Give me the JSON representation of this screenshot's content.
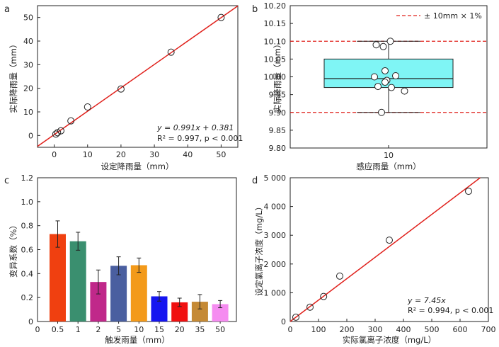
{
  "chart_data": [
    {
      "type": "scatter",
      "panel_label": "a",
      "xlabel": "设定降雨量（mm）",
      "ylabel": "实际降雨量（mm）",
      "xlim": [
        -5,
        55
      ],
      "ylim": [
        -5,
        55
      ],
      "xticks": [
        0,
        10,
        20,
        30,
        40,
        50
      ],
      "yticks": [
        0,
        10,
        20,
        30,
        40,
        50
      ],
      "x": [
        0.5,
        1,
        2,
        5,
        10,
        20,
        35,
        50
      ],
      "y": [
        0.6,
        1.2,
        2.0,
        6.2,
        12.1,
        19.7,
        35.3,
        50.0
      ],
      "fit": {
        "slope": 0.991,
        "intercept": 0.381,
        "color": "#e0201b"
      },
      "annotation_line1": "y = 0.991x + 0.381",
      "annotation_line2": "R² = 0.997, p < 0.001",
      "grid": false
    },
    {
      "type": "box",
      "panel_label": "b",
      "xlabel": "感应雨量（mm）",
      "ylabel": "实际降雨量（mm）",
      "ylim": [
        9.8,
        10.2
      ],
      "yticks": [
        "9.80",
        "9.85",
        "9.90",
        "9.95",
        "10.00",
        "10.05",
        "10.10",
        "10.15",
        "10.20"
      ],
      "category": "10",
      "box": {
        "min": 9.9,
        "q1": 9.97,
        "median": 9.995,
        "q3": 10.05,
        "max": 10.1,
        "color": "#7ff5f5"
      },
      "points": [
        {
          "jitter": -0.35,
          "y": 10.09
        },
        {
          "jitter": -0.15,
          "y": 10.085
        },
        {
          "jitter": 0.05,
          "y": 10.1
        },
        {
          "jitter": -0.1,
          "y": 10.017
        },
        {
          "jitter": -0.4,
          "y": 10.0
        },
        {
          "jitter": 0.2,
          "y": 10.003
        },
        {
          "jitter": -0.05,
          "y": 9.99
        },
        {
          "jitter": -0.1,
          "y": 9.985
        },
        {
          "jitter": -0.3,
          "y": 9.973
        },
        {
          "jitter": 0.08,
          "y": 9.97
        },
        {
          "jitter": 0.45,
          "y": 9.96
        },
        {
          "jitter": -0.2,
          "y": 9.9
        }
      ],
      "ref_lines": [
        9.9,
        10.1
      ],
      "ref_color": "#e0201b",
      "legend": "± 10mm × 1%",
      "legend_position": "top-right"
    },
    {
      "type": "bar",
      "panel_label": "c",
      "xlabel": "触发雨量（mm）",
      "ylabel": "变异系数（%）",
      "ylim": [
        0,
        1.2
      ],
      "yticks": [
        "0",
        "0.2",
        "0.4",
        "0.6",
        "0.8",
        "1.0",
        "1.2"
      ],
      "axis_zero_label": "0",
      "categories": [
        "0.5",
        "1",
        "2",
        "5",
        "10",
        "15",
        "20",
        "35",
        "50"
      ],
      "values": [
        0.73,
        0.67,
        0.33,
        0.465,
        0.47,
        0.21,
        0.16,
        0.165,
        0.145
      ],
      "errors": [
        0.11,
        0.075,
        0.1,
        0.075,
        0.06,
        0.04,
        0.035,
        0.06,
        0.03
      ],
      "colors": [
        "#f04010",
        "#3a8f6f",
        "#c0288a",
        "#4a5fa0",
        "#f39a1a",
        "#1515f0",
        "#f01010",
        "#c58a35",
        "#f58cf0"
      ]
    },
    {
      "type": "scatter",
      "panel_label": "d",
      "xlabel": "实际氯离子浓度（mg/L）",
      "ylabel": "设定氯离子浓度（mg/L）",
      "xlim": [
        0,
        700
      ],
      "ylim": [
        0,
        5000
      ],
      "xticks": [
        0,
        100,
        200,
        300,
        400,
        500,
        600,
        700
      ],
      "yticks": [
        "0",
        "1 000",
        "2 000",
        "3 000",
        "4 000",
        "5 000"
      ],
      "x": [
        20,
        70,
        118,
        175,
        350,
        630
      ],
      "y": [
        150,
        500,
        870,
        1580,
        2830,
        4530
      ],
      "fit": {
        "slope": 7.45,
        "intercept": 0,
        "color": "#e0201b"
      },
      "annotation_line1": "y = 7.45x",
      "annotation_line2": "R² = 0.994, p < 0.001",
      "grid": false
    }
  ]
}
